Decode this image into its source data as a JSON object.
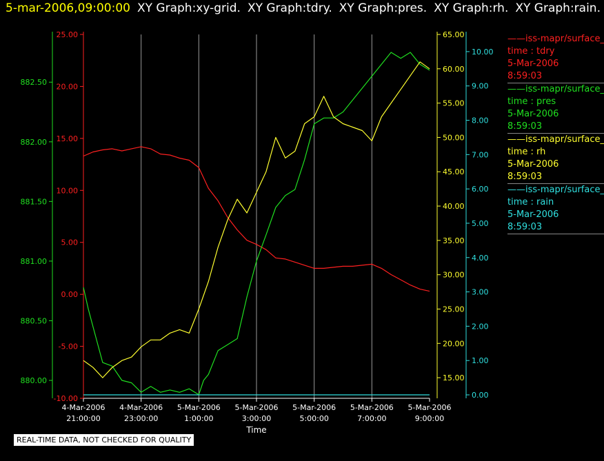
{
  "header": {
    "timestamp": "5-mar-2006,09:00:00",
    "titles": [
      "XY Graph:xy-grid.",
      "XY Graph:tdry.",
      "XY Graph:pres.",
      "XY Graph:rh.",
      "XY Graph:rain."
    ]
  },
  "legend": [
    {
      "name": "iss-mapr/surface_m",
      "var": "time : tdry",
      "date": "5-Mar-2006",
      "time": "8:59:03",
      "color": "#ff2020"
    },
    {
      "name": "iss-mapr/surface_m",
      "var": "time : pres",
      "date": "5-Mar-2006",
      "time": "8:59:03",
      "color": "#20e020"
    },
    {
      "name": "iss-mapr/surface_m",
      "var": "time : rh",
      "date": "5-Mar-2006",
      "time": "8:59:03",
      "color": "#ffff30"
    },
    {
      "name": "iss-mapr/surface_m",
      "var": "time : rain",
      "date": "5-Mar-2006",
      "time": "8:59:03",
      "color": "#30e0e0"
    }
  ],
  "quality_note": "REAL-TIME DATA, NOT CHECKED FOR QUALITY",
  "chart_data": {
    "type": "line",
    "xlabel": "Time",
    "xlim": [
      "2006-03-04 21:00",
      "2006-03-05 09:00"
    ],
    "x_ticks": [
      {
        "value": "2006-03-04 21:00",
        "date": "4-Mar-2006",
        "time": "21:00:00"
      },
      {
        "value": "2006-03-04 23:00",
        "date": "4-Mar-2006",
        "time": "23:00:00"
      },
      {
        "value": "2006-03-05 01:00",
        "date": "5-Mar-2006",
        "time": "1:00:00"
      },
      {
        "value": "2006-03-05 03:00",
        "date": "5-Mar-2006",
        "time": "3:00:00"
      },
      {
        "value": "2006-03-05 05:00",
        "date": "5-Mar-2006",
        "time": "5:00:00"
      },
      {
        "value": "2006-03-05 07:00",
        "date": "5-Mar-2006",
        "time": "7:00:00"
      },
      {
        "value": "2006-03-05 09:00",
        "date": "5-Mar-2006",
        "time": "9:00:00"
      }
    ],
    "grid": "vertical",
    "axes": {
      "pres": {
        "side": "left-outer",
        "color": "#20e020",
        "ylim": [
          879.85,
          882.9
        ],
        "ticks": [
          "880.00",
          "880.50",
          "881.00",
          "881.50",
          "882.00",
          "882.50"
        ]
      },
      "tdry": {
        "side": "left-inner",
        "color": "#ff2020",
        "ylim": [
          -10,
          25
        ],
        "ticks": [
          "-10.00",
          "-5.00",
          "0.00",
          "5.00",
          "10.00",
          "15.00",
          "20.00",
          "25.00"
        ]
      },
      "rh": {
        "side": "right-inner",
        "color": "#ffff30",
        "ylim": [
          12,
          65
        ],
        "ticks": [
          "15.00",
          "20.00",
          "25.00",
          "30.00",
          "35.00",
          "40.00",
          "45.00",
          "50.00",
          "55.00",
          "60.00",
          "65.00"
        ]
      },
      "rain": {
        "side": "right-outer",
        "color": "#30e0e0",
        "ylim": [
          -0.1,
          10.5
        ],
        "ticks": [
          "0.00",
          "1.00",
          "2.00",
          "3.00",
          "4.00",
          "5.00",
          "6.00",
          "7.00",
          "8.00",
          "9.00",
          "10.00"
        ]
      }
    },
    "series": [
      {
        "name": "tdry",
        "axis": "tdry",
        "color": "#ff2020",
        "x": [
          "2006-03-04 21:00",
          "2006-03-04 21:20",
          "2006-03-04 21:40",
          "2006-03-04 22:00",
          "2006-03-04 22:20",
          "2006-03-04 22:40",
          "2006-03-04 23:00",
          "2006-03-04 23:20",
          "2006-03-04 23:40",
          "2006-03-05 00:00",
          "2006-03-05 00:20",
          "2006-03-05 00:40",
          "2006-03-05 01:00",
          "2006-03-05 01:20",
          "2006-03-05 01:40",
          "2006-03-05 02:00",
          "2006-03-05 02:20",
          "2006-03-05 02:40",
          "2006-03-05 03:00",
          "2006-03-05 03:20",
          "2006-03-05 03:40",
          "2006-03-05 04:00",
          "2006-03-05 04:20",
          "2006-03-05 04:40",
          "2006-03-05 05:00",
          "2006-03-05 05:20",
          "2006-03-05 05:40",
          "2006-03-05 06:00",
          "2006-03-05 06:20",
          "2006-03-05 06:40",
          "2006-03-05 07:00",
          "2006-03-05 07:20",
          "2006-03-05 07:40",
          "2006-03-05 08:00",
          "2006-03-05 08:20",
          "2006-03-05 08:40",
          "2006-03-05 09:00"
        ],
        "y": [
          13.3,
          13.7,
          13.9,
          14.0,
          13.8,
          14.0,
          14.2,
          14.0,
          13.5,
          13.4,
          13.1,
          12.9,
          12.2,
          10.2,
          9.0,
          7.4,
          6.2,
          5.2,
          4.8,
          4.3,
          3.5,
          3.4,
          3.1,
          2.8,
          2.5,
          2.5,
          2.6,
          2.7,
          2.7,
          2.8,
          2.9,
          2.5,
          1.9,
          1.4,
          0.9,
          0.5,
          0.3
        ]
      },
      {
        "name": "pres",
        "axis": "pres",
        "color": "#20e020",
        "x": [
          "2006-03-04 21:00",
          "2006-03-04 21:10",
          "2006-03-04 21:20",
          "2006-03-04 21:30",
          "2006-03-04 21:40",
          "2006-03-04 22:00",
          "2006-03-04 22:20",
          "2006-03-04 22:40",
          "2006-03-04 23:00",
          "2006-03-04 23:20",
          "2006-03-04 23:40",
          "2006-03-05 00:00",
          "2006-03-05 00:20",
          "2006-03-05 00:40",
          "2006-03-05 01:00",
          "2006-03-05 01:10",
          "2006-03-05 01:20",
          "2006-03-05 01:40",
          "2006-03-05 02:00",
          "2006-03-05 02:20",
          "2006-03-05 02:40",
          "2006-03-05 03:00",
          "2006-03-05 03:20",
          "2006-03-05 03:40",
          "2006-03-05 04:00",
          "2006-03-05 04:20",
          "2006-03-05 04:40",
          "2006-03-05 05:00",
          "2006-03-05 05:20",
          "2006-03-05 05:40",
          "2006-03-05 06:00",
          "2006-03-05 06:20",
          "2006-03-05 06:40",
          "2006-03-05 07:00",
          "2006-03-05 07:20",
          "2006-03-05 07:40",
          "2006-03-05 08:00",
          "2006-03-05 08:20",
          "2006-03-05 08:40",
          "2006-03-05 09:00"
        ],
        "y": [
          880.78,
          880.6,
          880.45,
          880.3,
          880.15,
          880.12,
          880.0,
          879.98,
          879.9,
          879.95,
          879.9,
          879.92,
          879.9,
          879.93,
          879.88,
          880.0,
          880.05,
          880.25,
          880.3,
          880.35,
          880.7,
          881.0,
          881.22,
          881.45,
          881.55,
          881.6,
          881.85,
          882.15,
          882.2,
          882.2,
          882.25,
          882.35,
          882.45,
          882.55,
          882.65,
          882.75,
          882.7,
          882.75,
          882.65,
          882.6
        ]
      },
      {
        "name": "rh",
        "axis": "rh",
        "color": "#ffff30",
        "x": [
          "2006-03-04 21:00",
          "2006-03-04 21:20",
          "2006-03-04 21:40",
          "2006-03-04 22:00",
          "2006-03-04 22:20",
          "2006-03-04 22:40",
          "2006-03-04 23:00",
          "2006-03-04 23:20",
          "2006-03-04 23:40",
          "2006-03-05 00:00",
          "2006-03-05 00:20",
          "2006-03-05 00:40",
          "2006-03-05 01:00",
          "2006-03-05 01:20",
          "2006-03-05 01:40",
          "2006-03-05 02:00",
          "2006-03-05 02:20",
          "2006-03-05 02:40",
          "2006-03-05 03:00",
          "2006-03-05 03:20",
          "2006-03-05 03:40",
          "2006-03-05 04:00",
          "2006-03-05 04:20",
          "2006-03-05 04:40",
          "2006-03-05 05:00",
          "2006-03-05 05:20",
          "2006-03-05 05:40",
          "2006-03-05 06:00",
          "2006-03-05 06:20",
          "2006-03-05 06:40",
          "2006-03-05 07:00",
          "2006-03-05 07:20",
          "2006-03-05 07:40",
          "2006-03-05 08:00",
          "2006-03-05 08:20",
          "2006-03-05 08:40",
          "2006-03-05 09:00"
        ],
        "y": [
          17.5,
          16.5,
          15.0,
          16.5,
          17.5,
          18.0,
          19.5,
          20.5,
          20.5,
          21.5,
          22.0,
          21.5,
          25.0,
          29.0,
          34.0,
          38.0,
          41.0,
          39.0,
          42.0,
          45.0,
          50.0,
          47.0,
          48.0,
          52.0,
          53.0,
          56.0,
          53.0,
          52.0,
          51.5,
          51.0,
          49.5,
          53.0,
          55.0,
          57.0,
          59.0,
          61.0,
          60.0
        ]
      },
      {
        "name": "rain",
        "axis": "rain",
        "color": "#30e0e0",
        "x": [
          "2006-03-04 21:00",
          "2006-03-05 09:00"
        ],
        "y": [
          0.0,
          0.0
        ]
      }
    ]
  }
}
